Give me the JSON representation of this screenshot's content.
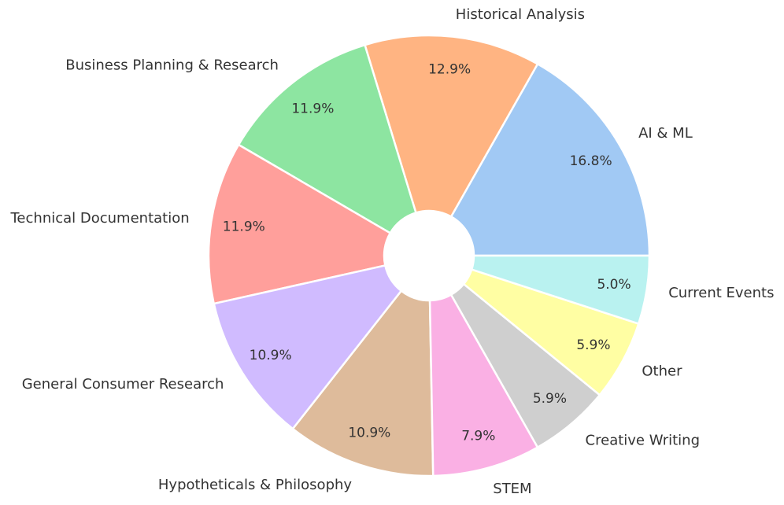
{
  "chart_data": {
    "type": "donut",
    "categories": [
      "AI & ML",
      "Historical Analysis",
      "Business Planning & Research",
      "Technical Documentation",
      "General Consumer Research",
      "Hypotheticals & Philosophy",
      "STEM",
      "Creative Writing",
      "Other",
      "Current Events"
    ],
    "values": [
      16.8,
      12.9,
      11.9,
      11.9,
      10.9,
      10.9,
      7.9,
      5.9,
      5.9,
      5.0
    ],
    "value_labels": [
      "16.8%",
      "12.9%",
      "11.9%",
      "11.9%",
      "10.9%",
      "10.9%",
      "7.9%",
      "5.9%",
      "5.9%",
      "5.0%"
    ],
    "colors": [
      "#a1c9f4",
      "#ffb482",
      "#8de5a1",
      "#ff9f9b",
      "#d0bbff",
      "#debb9b",
      "#fab0e4",
      "#cfcfcf",
      "#fffea3",
      "#b9f2f0"
    ]
  }
}
